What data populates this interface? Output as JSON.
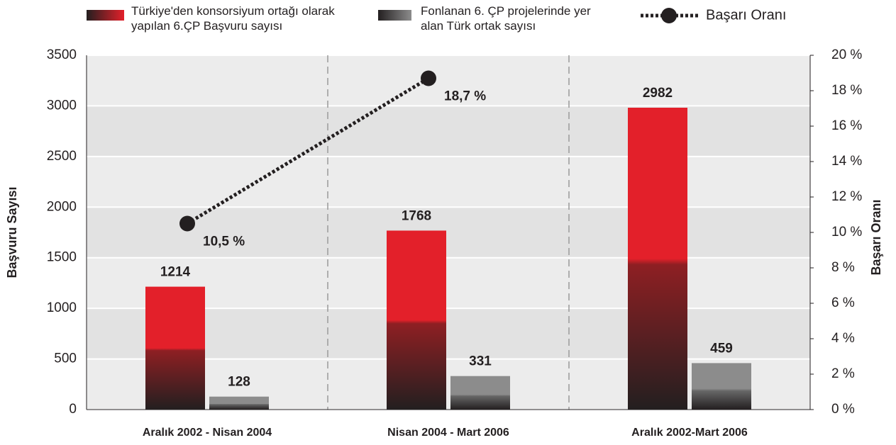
{
  "chart_data": {
    "type": "bar",
    "categories": [
      "Aralık 2002 - Nisan 2004",
      "Nisan 2004 - Mart 2006",
      "Aralık 2002-Mart 2006"
    ],
    "series": [
      {
        "name": "Türkiye'den konsorsiyum ortağı olarak yapılan 6.ÇP Başvuru sayısı",
        "type": "bar",
        "color": "#e3202a",
        "values": [
          1214,
          1768,
          2982
        ]
      },
      {
        "name": "Fonlanan 6. ÇP projelerinde yer alan Türk ortak sayısı",
        "type": "bar",
        "color": "#8c8c8c",
        "values": [
          128,
          331,
          459
        ]
      },
      {
        "name": "Başarı Oranı",
        "type": "line",
        "axis": "y2",
        "color": "#231f20",
        "values": [
          10.5,
          18.7,
          null
        ],
        "value_labels": [
          "10,5 %",
          "18,7 %",
          null
        ]
      }
    ],
    "ylabel": "Başvuru Sayısı",
    "y2label": "Başarı Oranı",
    "ylim": [
      0,
      3500
    ],
    "yticks": [
      0,
      500,
      1000,
      1500,
      2000,
      2500,
      3000,
      3500
    ],
    "y2lim": [
      0,
      20
    ],
    "y2ticks": [
      {
        "value": 0,
        "label": "0 %"
      },
      {
        "value": 2,
        "label": "2 %"
      },
      {
        "value": 4,
        "label": "4 %"
      },
      {
        "value": 6,
        "label": "6 %"
      },
      {
        "value": 8,
        "label": "8 %"
      },
      {
        "value": 10,
        "label": "10 %"
      },
      {
        "value": 12,
        "label": "12 %"
      },
      {
        "value": 14,
        "label": "14 %"
      },
      {
        "value": 16,
        "label": "16 %"
      },
      {
        "value": 18,
        "label": "18 %"
      },
      {
        "value": 20,
        "label": "20 %"
      }
    ],
    "grid": true,
    "legend": "top"
  }
}
